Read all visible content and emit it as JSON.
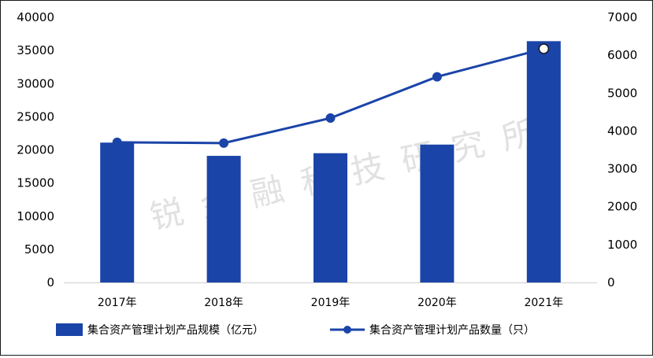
{
  "chart_data": {
    "type": "bar+line",
    "categories": [
      "2017年",
      "2018年",
      "2019年",
      "2020年",
      "2021年"
    ],
    "series": [
      {
        "name": "集合资产管理计划产品规模（亿元）",
        "type": "bar",
        "axis": "left",
        "values": [
          21100,
          19100,
          19500,
          20800,
          36400
        ]
      },
      {
        "name": "集合资产管理计划产品数量（只）",
        "type": "line",
        "axis": "right",
        "values": [
          3700,
          3680,
          4340,
          5430,
          6170
        ]
      }
    ],
    "y_left": {
      "ylim": [
        0,
        40000
      ],
      "ticks": [
        "0",
        "5000",
        "10000",
        "15000",
        "20000",
        "25000",
        "30000",
        "35000",
        "40000"
      ]
    },
    "y_right": {
      "ylim": [
        0,
        7000
      ],
      "ticks": [
        "0",
        "1000",
        "2000",
        "3000",
        "4000",
        "5000",
        "6000",
        "7000"
      ]
    },
    "grid": false,
    "legend": "bottom",
    "watermark": "华锐金融科技研究所",
    "colors": {
      "bar": "#1a44a8",
      "line": "#1a44a8",
      "marker_last": "#ffffff"
    }
  }
}
